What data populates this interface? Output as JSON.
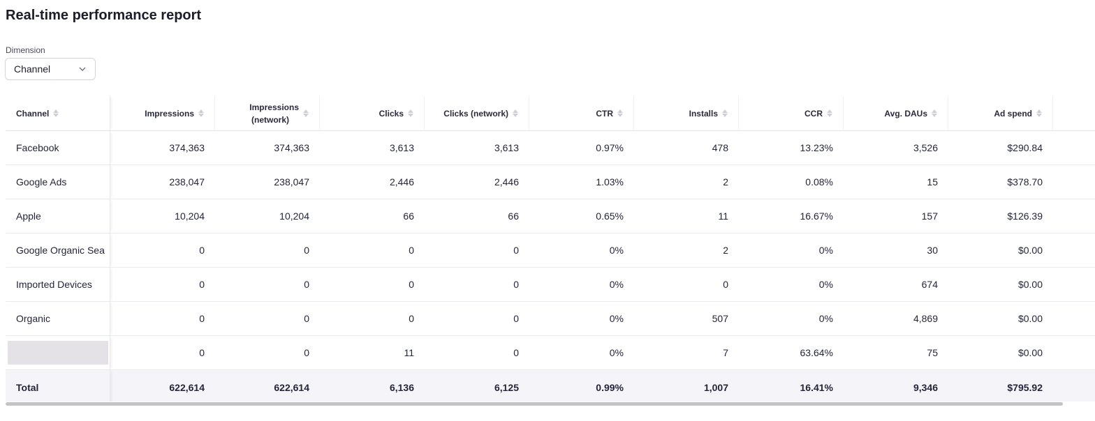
{
  "page_title": "Real-time performance report",
  "dimension": {
    "label": "Dimension",
    "selected": "Channel",
    "icon": "chevron-down-icon"
  },
  "table": {
    "columns": [
      {
        "label": "Channel"
      },
      {
        "label": "Impressions"
      },
      {
        "label": "Impressions (network)",
        "line1": "Impressions",
        "line2": "(network)"
      },
      {
        "label": "Clicks"
      },
      {
        "label": "Clicks (network)"
      },
      {
        "label": "CTR"
      },
      {
        "label": "Installs"
      },
      {
        "label": "CCR"
      },
      {
        "label": "Avg. DAUs"
      },
      {
        "label": "Ad spend"
      }
    ],
    "rows": [
      {
        "channel": "Facebook",
        "values": [
          "374,363",
          "374,363",
          "3,613",
          "3,613",
          "0.97%",
          "478",
          "13.23%",
          "3,526",
          "$290.84"
        ]
      },
      {
        "channel": "Google Ads",
        "values": [
          "238,047",
          "238,047",
          "2,446",
          "2,446",
          "1.03%",
          "2",
          "0.08%",
          "15",
          "$378.70"
        ]
      },
      {
        "channel": "Apple",
        "values": [
          "10,204",
          "10,204",
          "66",
          "66",
          "0.65%",
          "11",
          "16.67%",
          "157",
          "$126.39"
        ]
      },
      {
        "channel": "Google Organic Sea",
        "values": [
          "0",
          "0",
          "0",
          "0",
          "0%",
          "2",
          "0%",
          "30",
          "$0.00"
        ]
      },
      {
        "channel": "Imported Devices",
        "values": [
          "0",
          "0",
          "0",
          "0",
          "0%",
          "0",
          "0%",
          "674",
          "$0.00"
        ]
      },
      {
        "channel": "Organic",
        "values": [
          "0",
          "0",
          "0",
          "0",
          "0%",
          "507",
          "0%",
          "4,869",
          "$0.00"
        ]
      },
      {
        "channel": "",
        "values": [
          "0",
          "0",
          "11",
          "0",
          "0%",
          "7",
          "63.64%",
          "75",
          "$0.00"
        ]
      }
    ],
    "total": {
      "label": "Total",
      "values": [
        "622,614",
        "622,614",
        "6,136",
        "6,125",
        "0.99%",
        "1,007",
        "16.41%",
        "9,346",
        "$795.92"
      ]
    }
  }
}
